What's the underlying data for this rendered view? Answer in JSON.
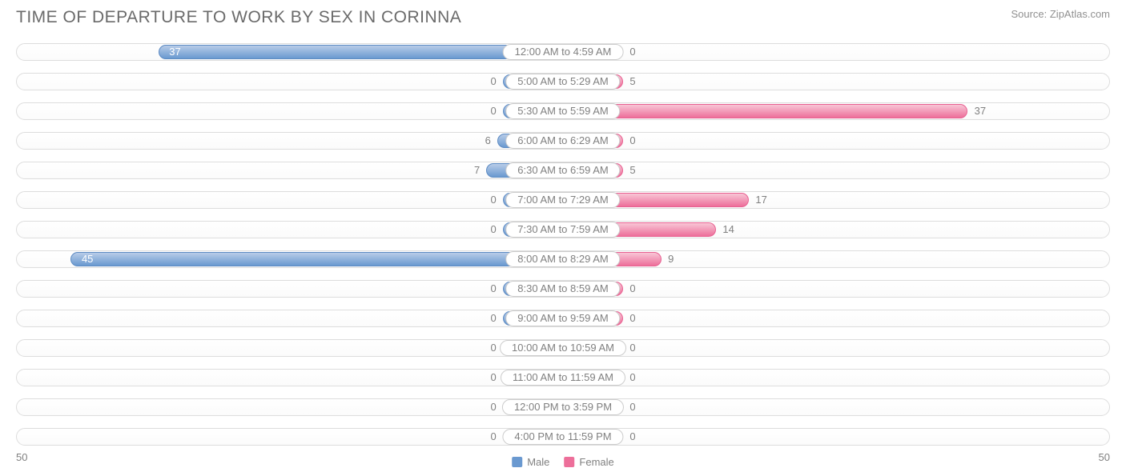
{
  "title": "TIME OF DEPARTURE TO WORK BY SEX IN CORINNA",
  "source": "Source: ZipAtlas.com",
  "axis_max": 50,
  "axis_label_left": "50",
  "axis_label_right": "50",
  "min_bar_half_pct": 5.5,
  "center_label_half_pct": 6.2,
  "colors": {
    "male_swatch": "#6a99d0",
    "female_swatch": "#ed6f9a",
    "text": "#808080"
  },
  "legend": {
    "male": "Male",
    "female": "Female"
  },
  "rows": [
    {
      "label": "12:00 AM to 4:59 AM",
      "male": 37,
      "female": 0
    },
    {
      "label": "5:00 AM to 5:29 AM",
      "male": 0,
      "female": 5
    },
    {
      "label": "5:30 AM to 5:59 AM",
      "male": 0,
      "female": 37
    },
    {
      "label": "6:00 AM to 6:29 AM",
      "male": 6,
      "female": 0
    },
    {
      "label": "6:30 AM to 6:59 AM",
      "male": 7,
      "female": 5
    },
    {
      "label": "7:00 AM to 7:29 AM",
      "male": 0,
      "female": 17
    },
    {
      "label": "7:30 AM to 7:59 AM",
      "male": 0,
      "female": 14
    },
    {
      "label": "8:00 AM to 8:29 AM",
      "male": 45,
      "female": 9
    },
    {
      "label": "8:30 AM to 8:59 AM",
      "male": 0,
      "female": 0
    },
    {
      "label": "9:00 AM to 9:59 AM",
      "male": 0,
      "female": 0
    },
    {
      "label": "10:00 AM to 10:59 AM",
      "male": 0,
      "female": 0
    },
    {
      "label": "11:00 AM to 11:59 AM",
      "male": 0,
      "female": 0
    },
    {
      "label": "12:00 PM to 3:59 PM",
      "male": 0,
      "female": 0
    },
    {
      "label": "4:00 PM to 11:59 PM",
      "male": 0,
      "female": 0
    }
  ]
}
